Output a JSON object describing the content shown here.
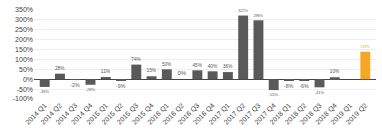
{
  "chart_data": {
    "type": "bar",
    "categories": [
      "2014 Q1",
      "2014 Q2",
      "2014 Q3",
      "2014 Q4",
      "2015 Q1",
      "2015 Q2",
      "2015 Q3",
      "2015 Q4",
      "2016 Q1",
      "2016 Q2",
      "2016 Q3",
      "2016 Q4",
      "2017 Q1",
      "2017 Q2",
      "2017 Q3",
      "2017 Q4",
      "2018 Q1",
      "2018 Q2",
      "2018 Q3",
      "2018 Q4",
      "2019 Q1",
      "2019 Q2"
    ],
    "values": [
      -39,
      28,
      -2,
      -28,
      11,
      -9,
      74,
      15,
      50,
      0,
      45,
      40,
      36,
      322,
      298,
      -55,
      -8,
      -6,
      -41,
      10,
      0,
      139
    ],
    "value_labels": [
      "-39%",
      "28%",
      "-2%",
      "-28%",
      "11%",
      "-9%",
      "74%",
      "15%",
      "50%",
      "0%",
      "45%",
      "40%",
      "36%",
      "322%",
      "298%",
      "-55%",
      "-8%",
      "-6%",
      "-41%",
      "10%",
      null,
      "139%"
    ],
    "data_labels": true,
    "colors": [
      "#595959",
      "#595959",
      "#595959",
      "#595959",
      "#595959",
      "#595959",
      "#595959",
      "#595959",
      "#595959",
      "#595959",
      "#595959",
      "#595959",
      "#595959",
      "#595959",
      "#595959",
      "#595959",
      "#595959",
      "#595959",
      "#595959",
      "#595959",
      "#595959",
      "#f5a623"
    ],
    "ylim": [
      -100,
      350
    ],
    "yticks": [
      {
        "value": -100,
        "label": "-100%"
      },
      {
        "value": -50,
        "label": "-50%"
      },
      {
        "value": 0,
        "label": "0%"
      },
      {
        "value": 50,
        "label": "50%"
      },
      {
        "value": 100,
        "label": "100%"
      },
      {
        "value": 150,
        "label": "150%"
      },
      {
        "value": 200,
        "label": "200%"
      },
      {
        "value": 250,
        "label": "250%"
      },
      {
        "value": 300,
        "label": "300%"
      },
      {
        "value": 350,
        "label": "350%"
      }
    ],
    "grid": true
  }
}
